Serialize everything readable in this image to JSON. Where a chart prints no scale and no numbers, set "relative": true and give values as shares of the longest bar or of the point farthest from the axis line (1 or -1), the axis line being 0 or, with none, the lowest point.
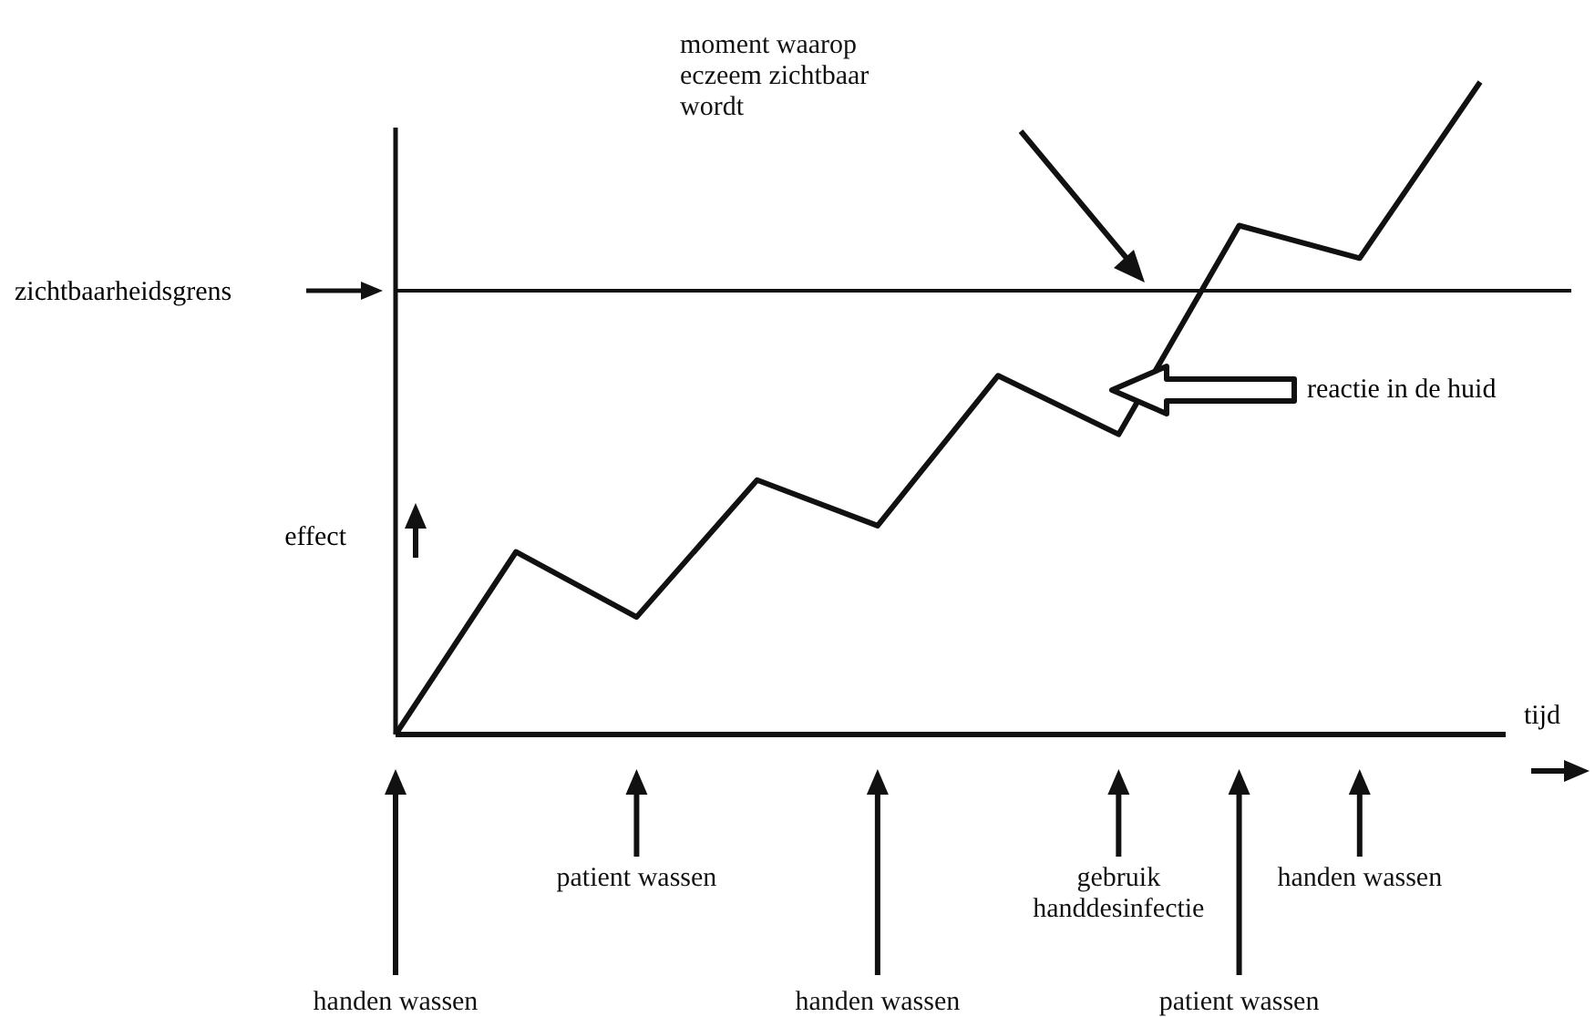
{
  "chart_data": {
    "type": "line",
    "relative": true,
    "xlabel": "tijd",
    "ylabel": "effect",
    "categories": [
      null,
      null,
      null,
      null,
      null,
      null,
      null,
      null,
      null,
      null
    ],
    "series": [
      {
        "color": "#111111",
        "values": [
          0,
          0.28,
          0.18,
          0.39,
          0.32,
          0.55,
          0.46,
          0.78,
          0.73,
          1
        ]
      }
    ],
    "ref_lines": [
      {
        "axis": "y",
        "value": 0.68,
        "label": "zichtbaarheidsgrens"
      }
    ],
    "annotations": [
      "moment waarop\neczeem zichtbaar\nwordt",
      "reactie in de huid",
      "handen wassen",
      "patient wassen",
      "handen wassen",
      "gebruik\nhanddesinfectie",
      "patient wassen",
      "handen wassen"
    ],
    "marker": "none"
  }
}
